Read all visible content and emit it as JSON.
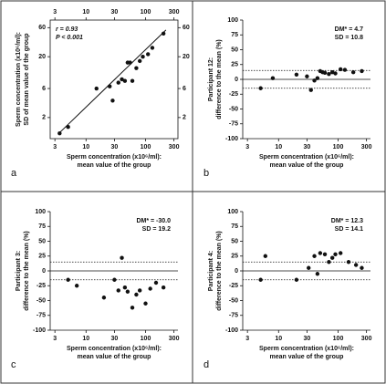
{
  "chart_data": [
    {
      "type": "scatter",
      "panel": "a",
      "log_x": true,
      "log_y": true,
      "frame": true,
      "mirror_ticks": true,
      "xlabel": [
        "Sperm concentration (x10⁶/ml):",
        "mean value of the group"
      ],
      "ylabel": [
        "Sperm concentration (x10⁶/ml):",
        "SD of mean value of the group"
      ],
      "annotations": [
        "r = 0.93",
        "P < 0.001"
      ],
      "xlim": [
        2.5,
        350
      ],
      "xticks": [
        3,
        10,
        30,
        100,
        300
      ],
      "ylim": [
        0.9,
        80
      ],
      "yticks": [
        2,
        6,
        20,
        60
      ],
      "x": [
        3.6,
        5,
        15,
        25,
        28,
        35,
        40,
        45,
        50,
        55,
        60,
        70,
        80,
        90,
        110,
        130,
        200
      ],
      "values": [
        1.1,
        1.4,
        6,
        6.5,
        3.8,
        7.5,
        8.5,
        8,
        16,
        16,
        8,
        13,
        17,
        20,
        22,
        28,
        48
      ],
      "color": "#111111",
      "fit": {
        "x": [
          3.5,
          220
        ],
        "y": [
          1.1,
          55
        ]
      }
    },
    {
      "type": "scatter",
      "panel": "b",
      "log_x": true,
      "xlabel": [
        "Sperm concentration (x10⁶/ml):",
        "mean value of the group"
      ],
      "ylabel": [
        "Participant 12:",
        "difference to the mean (%)"
      ],
      "annotations": [
        "DM* = 4.7",
        "SD = 10.8"
      ],
      "xlim": [
        2.5,
        350
      ],
      "xticks": [
        3,
        10,
        30,
        100,
        300
      ],
      "ylim": [
        -100,
        100
      ],
      "yticks": [
        -100,
        -75,
        -50,
        -25,
        0,
        25,
        50,
        75,
        100
      ],
      "x": [
        5,
        8,
        20,
        30,
        35,
        40,
        45,
        50,
        55,
        60,
        70,
        80,
        90,
        110,
        130,
        180,
        250
      ],
      "values": [
        -15,
        2,
        8,
        5,
        -18,
        -2,
        2,
        14,
        12,
        11,
        9,
        12,
        10,
        17,
        16,
        12,
        14
      ],
      "color": "#111111",
      "hlines": [
        {
          "value": 0,
          "style": "solid"
        },
        {
          "value": 15,
          "style": "dotted"
        },
        {
          "value": -15,
          "style": "dotted"
        }
      ]
    },
    {
      "type": "scatter",
      "panel": "c",
      "log_x": true,
      "xlabel": [
        "Sperm concentration (x10⁶/ml):",
        "mean value of the group"
      ],
      "ylabel": [
        "Participant 3:",
        "difference to the mean (%)"
      ],
      "annotations": [
        "DM* = -30.0",
        "SD = 19.2"
      ],
      "xlim": [
        2.5,
        350
      ],
      "xticks": [
        3,
        10,
        30,
        100,
        300
      ],
      "ylim": [
        -100,
        100
      ],
      "yticks": [
        -100,
        -75,
        -50,
        -25,
        0,
        25,
        50,
        75,
        100
      ],
      "x": [
        5,
        7,
        20,
        30,
        35,
        40,
        45,
        50,
        60,
        70,
        80,
        100,
        120,
        150,
        200
      ],
      "values": [
        -15,
        -25,
        -45,
        -15,
        -33,
        22,
        -28,
        -35,
        -62,
        -40,
        -33,
        -55,
        -30,
        -20,
        -28
      ],
      "color": "#111111",
      "hlines": [
        {
          "value": 0,
          "style": "solid"
        },
        {
          "value": 15,
          "style": "dotted"
        },
        {
          "value": -15,
          "style": "dotted"
        }
      ]
    },
    {
      "type": "scatter",
      "panel": "d",
      "log_x": true,
      "xlabel": [
        "Sperm concentration (x10⁶/ml):",
        "mean value of the group"
      ],
      "ylabel": [
        "Participant 4:",
        "difference to the mean (%)"
      ],
      "annotations": [
        "DM* = 12.3",
        "SD = 14.1"
      ],
      "xlim": [
        2.5,
        350
      ],
      "xticks": [
        3,
        10,
        30,
        100,
        300
      ],
      "ylim": [
        -100,
        100
      ],
      "yticks": [
        -100,
        -75,
        -50,
        -25,
        0,
        25,
        50,
        75,
        100
      ],
      "x": [
        5,
        6,
        20,
        32,
        40,
        45,
        50,
        60,
        70,
        80,
        90,
        110,
        150,
        200,
        250
      ],
      "values": [
        -15,
        25,
        -15,
        5,
        25,
        -5,
        30,
        28,
        15,
        22,
        28,
        30,
        15,
        10,
        5
      ],
      "color": "#111111",
      "hlines": [
        {
          "value": 0,
          "style": "solid"
        },
        {
          "value": 15,
          "style": "dotted"
        },
        {
          "value": -15,
          "style": "dotted"
        }
      ]
    }
  ]
}
